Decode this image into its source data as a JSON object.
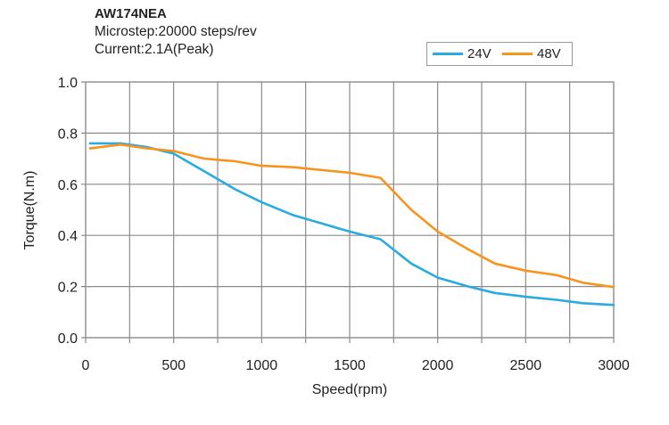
{
  "chart_data": {
    "type": "line",
    "title": "AW174NEA",
    "subtitle_lines": [
      "Microstep:20000 steps/rev",
      "Current:2.1A(Peak)"
    ],
    "xlabel": "Speed(rpm)",
    "ylabel": "Torque(N.m)",
    "xlim": [
      0,
      3000
    ],
    "ylim": [
      0,
      1.0
    ],
    "x_ticks": [
      0,
      500,
      1000,
      1500,
      2000,
      2500,
      3000
    ],
    "x_tick_labels": [
      "0",
      "500",
      "1000",
      "1500",
      "2000",
      "2500",
      "3000"
    ],
    "x_minor_step": 250,
    "y_ticks": [
      0,
      0.2,
      0.4,
      0.6,
      0.8,
      1.0
    ],
    "y_tick_labels": [
      "0.0",
      "0.2",
      "0.4",
      "0.6",
      "0.8",
      "1.0"
    ],
    "grid": true,
    "legend_position": "top-right",
    "series": [
      {
        "name": "24V",
        "color": "#29abe2",
        "x": [
          25,
          200,
          350,
          500,
          675,
          850,
          1000,
          1175,
          1350,
          1500,
          1675,
          1850,
          2000,
          2175,
          2325,
          2500,
          2675,
          2825,
          3000
        ],
        "y": [
          0.76,
          0.76,
          0.745,
          0.72,
          0.65,
          0.58,
          0.53,
          0.48,
          0.445,
          0.415,
          0.385,
          0.29,
          0.235,
          0.2,
          0.175,
          0.16,
          0.148,
          0.135,
          0.128
        ]
      },
      {
        "name": "48V",
        "color": "#f7941d",
        "x": [
          25,
          200,
          350,
          500,
          675,
          850,
          1000,
          1175,
          1350,
          1500,
          1675,
          1850,
          2000,
          2175,
          2325,
          2500,
          2675,
          2825,
          3000
        ],
        "y": [
          0.74,
          0.755,
          0.74,
          0.73,
          0.7,
          0.69,
          0.672,
          0.667,
          0.655,
          0.645,
          0.625,
          0.5,
          0.415,
          0.345,
          0.29,
          0.262,
          0.245,
          0.215,
          0.198
        ]
      }
    ]
  }
}
